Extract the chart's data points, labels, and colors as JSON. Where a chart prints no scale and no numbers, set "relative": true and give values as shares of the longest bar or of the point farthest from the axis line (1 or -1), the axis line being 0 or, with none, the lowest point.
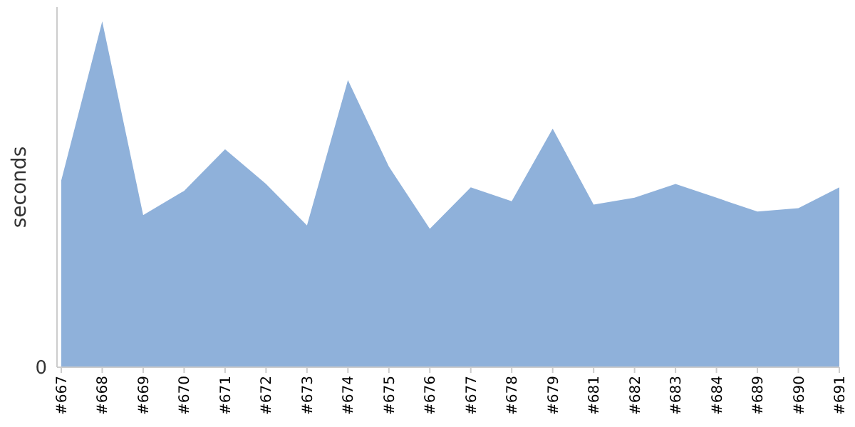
{
  "chart_data": {
    "type": "area",
    "ylabel": "seconds",
    "relative": true,
    "categories": [
      "#667",
      "#668",
      "#669",
      "#670",
      "#671",
      "#672",
      "#673",
      "#674",
      "#675",
      "#676",
      "#677",
      "#678",
      "#679",
      "#681",
      "#682",
      "#683",
      "#684",
      "#689",
      "#690",
      "#691"
    ],
    "series": [
      {
        "color": "#8fb1da",
        "values": [
          0.54,
          1,
          0.44,
          0.51,
          0.63,
          0.53,
          0.41,
          0.83,
          0.58,
          0.4,
          0.52,
          0.48,
          0.69,
          0.47,
          0.49,
          0.53,
          0.49,
          0.45,
          0.46,
          0.52
        ]
      }
    ],
    "annotations": [
      "0"
    ]
  }
}
